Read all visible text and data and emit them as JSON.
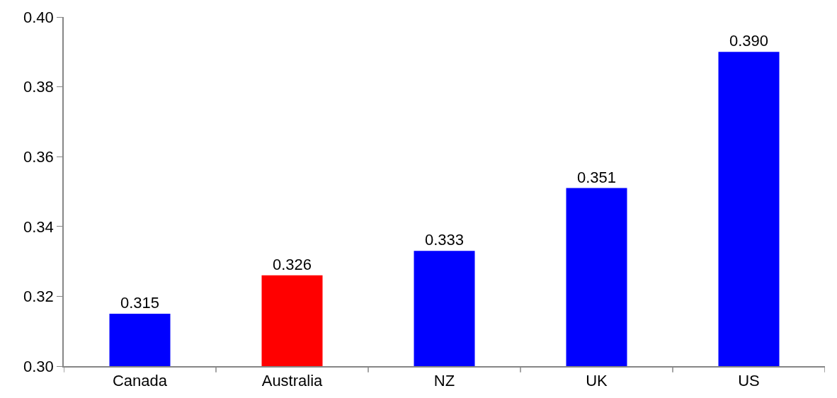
{
  "chart_data": {
    "type": "bar",
    "categories": [
      "Canada",
      "Australia",
      "NZ",
      "UK",
      "US"
    ],
    "values": [
      0.315,
      0.326,
      0.333,
      0.351,
      0.39
    ],
    "colors": [
      "#0000ff",
      "#ff0000",
      "#0000ff",
      "#0000ff",
      "#0000ff"
    ],
    "value_labels": [
      "0.315",
      "0.326",
      "0.333",
      "0.351",
      "0.390"
    ],
    "ylim": [
      0.3,
      0.4
    ],
    "yticks": [
      {
        "value": 0.3,
        "label": "0.30"
      },
      0.32,
      0.34,
      0.36,
      0.38,
      {
        "value": 0.4,
        "label": "0.40"
      }
    ]
  }
}
